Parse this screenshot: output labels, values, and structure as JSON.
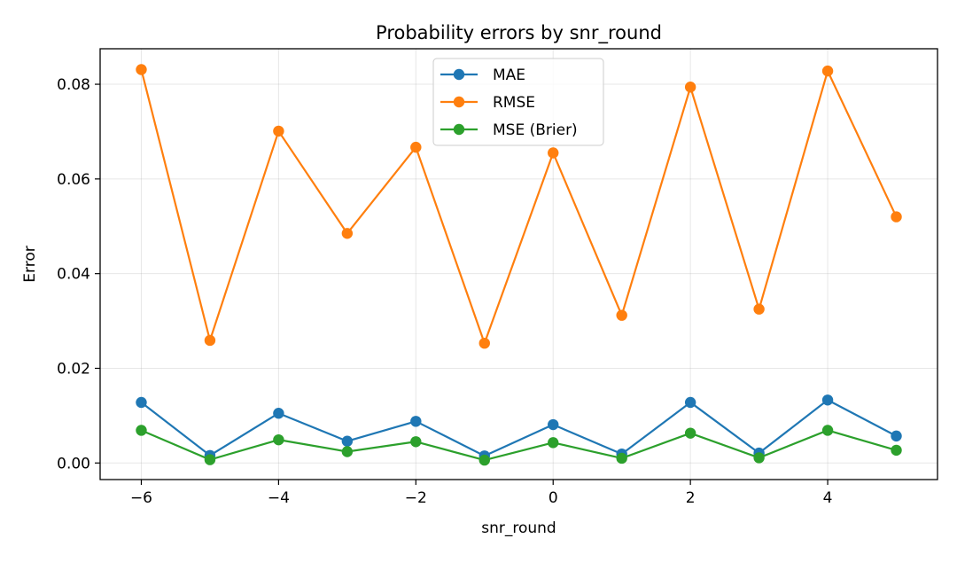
{
  "chart_data": {
    "type": "line",
    "title": "Probability errors by snr_round",
    "xlabel": "snr_round",
    "ylabel": "Error",
    "x": [
      -6,
      -5,
      -4,
      -3,
      -2,
      -1,
      0,
      1,
      2,
      3,
      4,
      5
    ],
    "xlim": [
      -6.6,
      5.6
    ],
    "ylim": [
      -0.0035,
      0.0875
    ],
    "xticks": [
      -6,
      -4,
      -2,
      0,
      2,
      4
    ],
    "xtick_labels": [
      "−6",
      "−4",
      "−2",
      "0",
      "2",
      "4"
    ],
    "yticks": [
      0.0,
      0.02,
      0.04,
      0.06,
      0.08
    ],
    "ytick_labels": [
      "0.00",
      "0.02",
      "0.04",
      "0.06",
      "0.08"
    ],
    "grid": true,
    "legend_position": "top-center",
    "series": [
      {
        "name": "MAE",
        "color": "#1f77b4",
        "values": [
          0.0128,
          0.0016,
          0.0105,
          0.0046,
          0.0088,
          0.0015,
          0.0081,
          0.0019,
          0.0128,
          0.0021,
          0.0133,
          0.0057
        ]
      },
      {
        "name": "RMSE",
        "color": "#ff7f0e",
        "values": [
          0.0831,
          0.0259,
          0.0701,
          0.0485,
          0.0667,
          0.0253,
          0.0655,
          0.0312,
          0.0794,
          0.0325,
          0.0828,
          0.052
        ]
      },
      {
        "name": "MSE (Brier)",
        "color": "#2ca02c",
        "values": [
          0.0069,
          0.0007,
          0.0049,
          0.0024,
          0.0045,
          0.0006,
          0.0043,
          0.001,
          0.0063,
          0.0011,
          0.0069,
          0.0027
        ]
      }
    ]
  }
}
